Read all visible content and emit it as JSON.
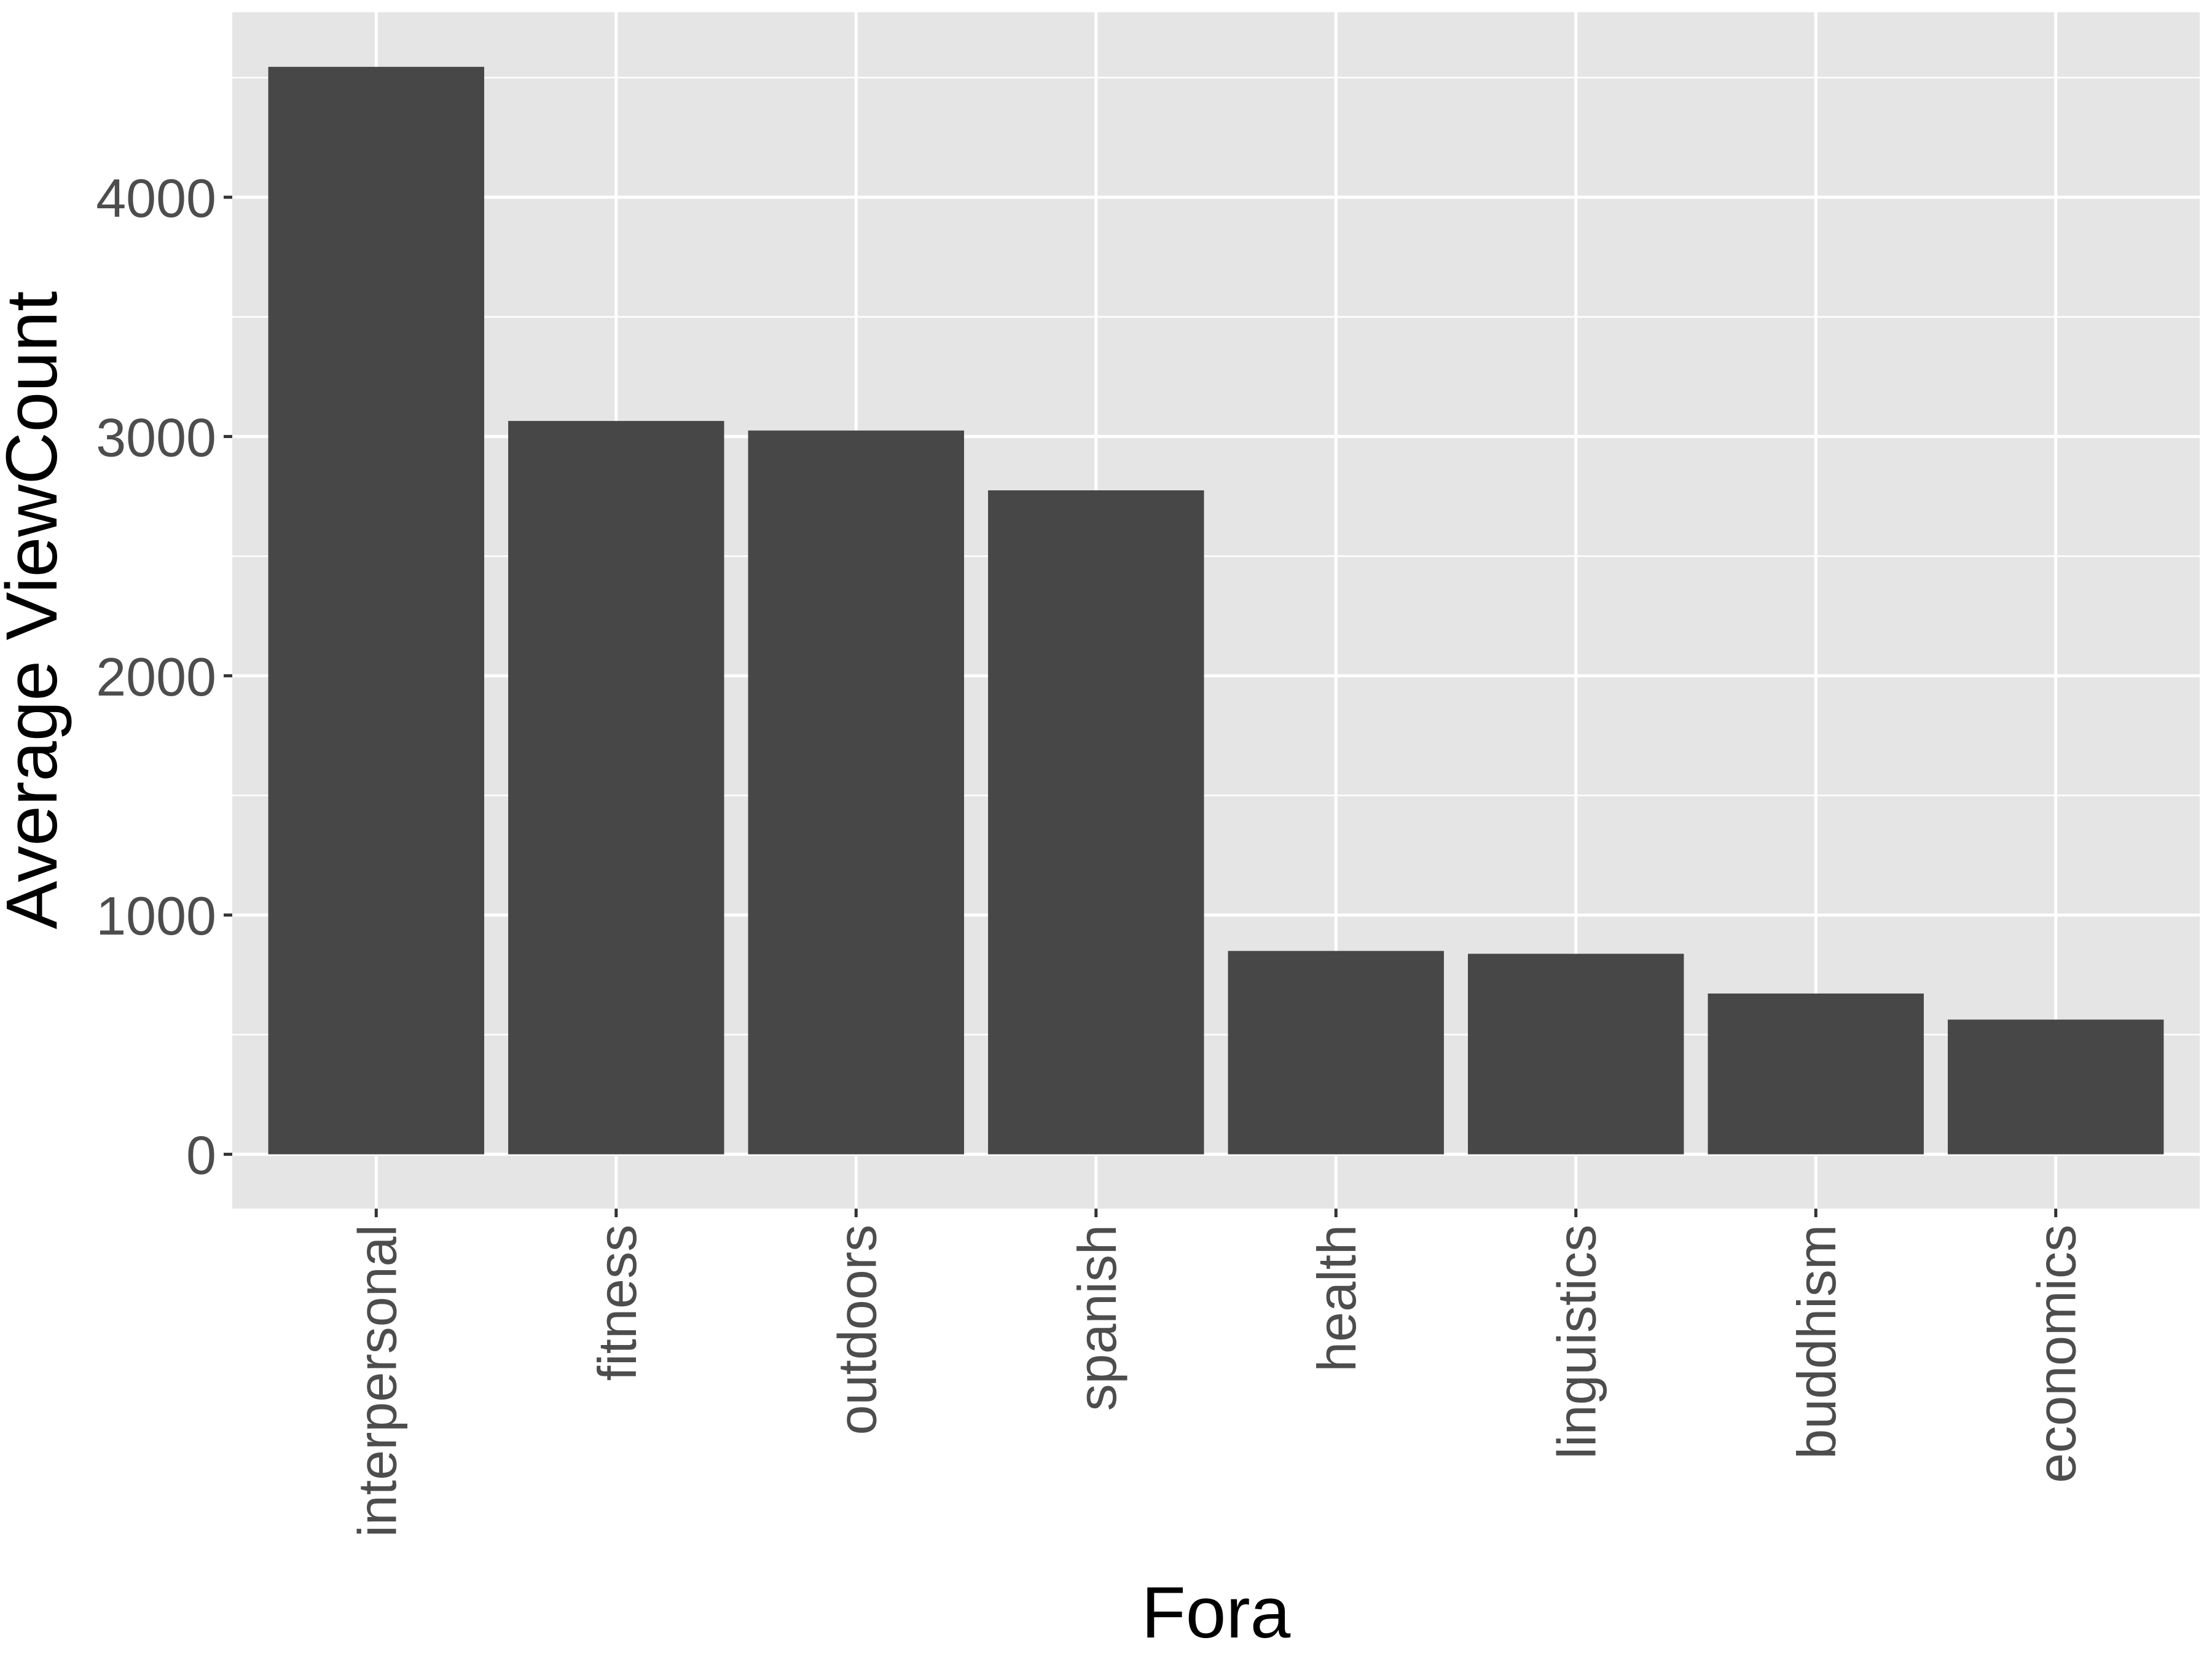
{
  "chart_data": {
    "type": "bar",
    "categories": [
      "interpersonal",
      "fitness",
      "outdoors",
      "spanish",
      "health",
      "linguistics",
      "buddhism",
      "economics"
    ],
    "values": [
      4545,
      3065,
      3025,
      2775,
      850,
      838,
      672,
      563
    ],
    "xlabel": "Fora",
    "ylabel": "Average ViewCount",
    "yticks": [
      0,
      1000,
      2000,
      3000,
      4000
    ],
    "ylim": [
      -227,
      4773
    ],
    "grid": true,
    "legend": "none",
    "colors": {
      "panel": "#e5e5e5",
      "grid": "#ffffff",
      "bar": "#474747",
      "tick_text": "#4d4d4d",
      "title_text": "#000000"
    }
  }
}
